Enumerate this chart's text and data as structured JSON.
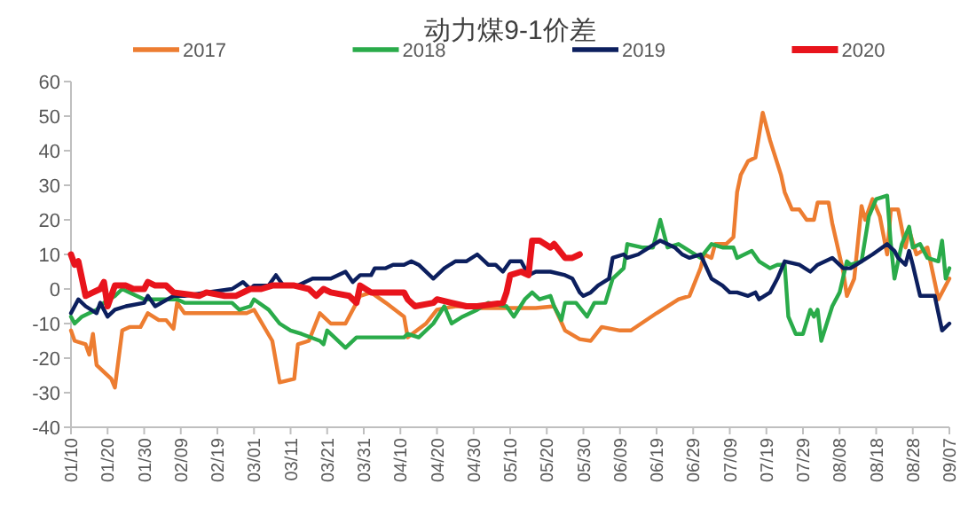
{
  "chart_data": {
    "type": "line",
    "title": "动力煤9-1价差",
    "legend": "top",
    "xlim": [
      "--01-10",
      "--09-07"
    ],
    "xticks": [
      {
        "value": "--01-10",
        "label": "01/10"
      },
      {
        "value": "--01-20",
        "label": "01/20"
      },
      {
        "value": "--01-30",
        "label": "01/30"
      },
      {
        "value": "--02-09",
        "label": "02/09"
      },
      {
        "value": "--02-19",
        "label": "02/19"
      },
      {
        "value": "--03-01",
        "label": "03/01"
      },
      {
        "value": "--03-11",
        "label": "03/11"
      },
      {
        "value": "--03-21",
        "label": "03/21"
      },
      {
        "value": "--03-31",
        "label": "03/31"
      },
      {
        "value": "--04-10",
        "label": "04/10"
      },
      {
        "value": "--04-20",
        "label": "04/20"
      },
      {
        "value": "--04-30",
        "label": "04/30"
      },
      {
        "value": "--05-10",
        "label": "05/10"
      },
      {
        "value": "--05-20",
        "label": "05/20"
      },
      {
        "value": "--05-30",
        "label": "05/30"
      },
      {
        "value": "--06-09",
        "label": "06/09"
      },
      {
        "value": "--06-19",
        "label": "06/19"
      },
      {
        "value": "--06-29",
        "label": "06/29"
      },
      {
        "value": "--07-09",
        "label": "07/09"
      },
      {
        "value": "--07-19",
        "label": "07/19"
      },
      {
        "value": "--07-29",
        "label": "07/29"
      },
      {
        "value": "--08-08",
        "label": "08/08"
      },
      {
        "value": "--08-18",
        "label": "08/18"
      },
      {
        "value": "--08-28",
        "label": "08/28"
      },
      {
        "value": "--09-07",
        "label": "09/07"
      }
    ],
    "ylim": [
      -40,
      60
    ],
    "yticks": [
      -40,
      -30,
      -20,
      -10,
      0,
      10,
      20,
      30,
      40,
      50,
      60
    ],
    "series": [
      {
        "name": "2017",
        "color": "#ed7d31",
        "x": [
          "--01-10",
          "--01-11",
          "--01-14",
          "--01-15",
          "--01-16",
          "--01-17",
          "--01-19",
          "--01-21",
          "--01-22",
          "--01-24",
          "--01-26",
          "--01-29",
          "--01-31",
          "--02-03",
          "--02-05",
          "--02-07",
          "--02-08",
          "--02-10",
          "--02-16",
          "--02-24",
          "--02-27",
          "--03-01",
          "--03-06",
          "--03-08",
          "--03-12",
          "--03-13",
          "--03-16",
          "--03-19",
          "--03-22",
          "--03-26",
          "--03-29",
          "--03-30",
          "--04-02",
          "--04-06",
          "--04-11",
          "--04-12",
          "--04-17",
          "--04-20",
          "--04-25",
          "--04-30",
          "--05-01",
          "--05-11",
          "--05-17",
          "--05-22",
          "--05-25",
          "--05-29",
          "--06-01",
          "--06-04",
          "--06-09",
          "--06-12",
          "--06-19",
          "--06-25",
          "--06-28",
          "--07-01",
          "--07-02",
          "--07-04",
          "--07-05",
          "--07-08",
          "--07-10",
          "--07-11",
          "--07-12",
          "--07-14",
          "--07-16",
          "--07-18",
          "--07-20",
          "--07-23",
          "--07-24",
          "--07-26",
          "--07-28",
          "--07-30",
          "--08-01",
          "--08-02",
          "--08-05",
          "--08-06",
          "--08-09",
          "--08-10",
          "--08-12",
          "--08-14",
          "--08-15",
          "--08-17",
          "--08-19",
          "--08-21",
          "--08-22",
          "--08-24",
          "--08-26",
          "--08-27",
          "--08-29",
          "--09-01",
          "--09-04",
          "--09-07"
        ],
        "values": [
          -12,
          -15,
          -16,
          -19,
          -13,
          -22,
          -24,
          -26,
          -28.5,
          -12,
          -11,
          -11,
          -7,
          -9,
          -9,
          -11.5,
          -4,
          -7,
          -7,
          -7,
          -7,
          -6,
          -15,
          -27,
          -26,
          -16,
          -15,
          -7,
          -10,
          -10,
          -4,
          -2,
          -1,
          -4,
          -8,
          -14,
          -10,
          -6,
          -5,
          -5,
          -5.5,
          -5.5,
          -5.5,
          -5,
          -12,
          -14.5,
          -15,
          -11,
          -12,
          -12,
          -7,
          -3,
          -2,
          6,
          10,
          9,
          13,
          13,
          15,
          28,
          33,
          37,
          38,
          51,
          43,
          33,
          28,
          23,
          23,
          20,
          20,
          25,
          25,
          19,
          5,
          -2,
          3,
          24,
          20,
          26,
          21,
          10,
          23,
          23,
          12,
          17,
          10,
          12,
          -3,
          3
        ]
      },
      {
        "name": "2018",
        "color": "#2aab4a",
        "x": [
          "--01-10",
          "--01-11",
          "--01-13",
          "--01-15",
          "--01-17",
          "--01-19",
          "--01-22",
          "--01-24",
          "--01-26",
          "--01-30",
          "--02-04",
          "--02-08",
          "--02-10",
          "--02-16",
          "--02-23",
          "--02-25",
          "--02-28",
          "--03-01",
          "--03-05",
          "--03-08",
          "--03-11",
          "--03-14",
          "--03-19",
          "--03-20",
          "--03-21",
          "--03-23",
          "--03-26",
          "--03-29",
          "--04-04",
          "--04-11",
          "--04-12",
          "--04-15",
          "--04-19",
          "--04-22",
          "--04-24",
          "--04-27",
          "--05-01",
          "--05-04",
          "--05-09",
          "--05-11",
          "--05-14",
          "--05-16",
          "--05-18",
          "--05-21",
          "--05-22",
          "--05-24",
          "--05-25",
          "--05-28",
          "--05-31",
          "--06-02",
          "--06-05",
          "--06-07",
          "--06-10",
          "--06-11",
          "--06-15",
          "--06-18",
          "--06-20",
          "--06-22",
          "--06-25",
          "--06-28",
          "--07-01",
          "--07-04",
          "--07-07",
          "--07-10",
          "--07-11",
          "--07-15",
          "--07-17",
          "--07-20",
          "--07-22",
          "--07-24",
          "--07-25",
          "--07-27",
          "--07-29",
          "--07-31",
          "--08-01",
          "--08-02",
          "--08-03",
          "--08-06",
          "--08-08",
          "--08-10",
          "--08-11",
          "--08-14",
          "--08-16",
          "--08-18",
          "--08-21",
          "--08-22",
          "--08-23",
          "--08-25",
          "--08-27",
          "--08-28",
          "--08-30",
          "--09-01",
          "--09-04",
          "--09-05",
          "--09-06",
          "--09-07"
        ],
        "values": [
          -8,
          -10,
          -8,
          -7,
          -6,
          -4,
          -2,
          0,
          -1,
          -3,
          -3,
          -3,
          -4,
          -4,
          -4,
          -6,
          -5,
          -3,
          -6,
          -10,
          -12,
          -13,
          -15,
          -16,
          -12,
          -14,
          -17,
          -14,
          -14,
          -14,
          -13,
          -14,
          -10,
          -5,
          -10,
          -8,
          -6,
          -4,
          -5,
          -8,
          -3,
          -1,
          -3,
          -2,
          -5,
          -9,
          -4,
          -4,
          -8,
          -4,
          -4,
          3,
          6,
          13,
          12,
          12,
          20,
          12,
          13,
          11,
          9,
          13,
          12,
          12,
          9,
          11,
          8,
          6,
          7,
          7,
          -8,
          -13,
          -13,
          -6,
          -8,
          -6,
          -15,
          -5,
          -1,
          8,
          7,
          8,
          21,
          26,
          27,
          13,
          3,
          13,
          18,
          12,
          13,
          9,
          8,
          14,
          3,
          6
        ]
      },
      {
        "name": "2019",
        "color": "#0c1f5e",
        "x": [
          "--01-10",
          "--01-12",
          "--01-14",
          "--01-17",
          "--01-18",
          "--01-20",
          "--01-22",
          "--01-25",
          "--01-30",
          "--01-31",
          "--02-02",
          "--02-07",
          "--02-10",
          "--02-16",
          "--02-23",
          "--02-26",
          "--02-28",
          "--03-01",
          "--03-05",
          "--03-07",
          "--03-09",
          "--03-13",
          "--03-17",
          "--03-22",
          "--03-26",
          "--03-28",
          "--03-30",
          "--04-02",
          "--04-03",
          "--04-06",
          "--04-08",
          "--04-11",
          "--04-13",
          "--04-15",
          "--04-19",
          "--04-22",
          "--04-25",
          "--04-28",
          "--05-01",
          "--05-04",
          "--05-06",
          "--05-08",
          "--05-10",
          "--05-13",
          "--05-15",
          "--05-17",
          "--05-21",
          "--05-25",
          "--05-27",
          "--05-29",
          "--05-30",
          "--06-01",
          "--06-03",
          "--06-06",
          "--06-07",
          "--06-10",
          "--06-11",
          "--06-14",
          "--06-17",
          "--06-20",
          "--06-24",
          "--06-26",
          "--06-28",
          "--07-01",
          "--07-04",
          "--07-07",
          "--07-09",
          "--07-11",
          "--07-14",
          "--07-16",
          "--07-17",
          "--07-20",
          "--07-22",
          "--07-24",
          "--07-28",
          "--07-31",
          "--08-02",
          "--08-06",
          "--08-09",
          "--08-11",
          "--08-14",
          "--08-17",
          "--08-21",
          "--08-23",
          "--08-24",
          "--08-26",
          "--08-27",
          "--08-28",
          "--08-30",
          "--09-03",
          "--09-05",
          "--09-07"
        ],
        "values": [
          -7,
          -3,
          -5,
          -7,
          -4,
          -8,
          -6,
          -5,
          -4,
          -2,
          -5,
          -2,
          -2,
          -1,
          0,
          2,
          0,
          1,
          1,
          4,
          1,
          1,
          3,
          3,
          5,
          2,
          4,
          4,
          6,
          6,
          7,
          7,
          8,
          7,
          3,
          6,
          8,
          8,
          10,
          7,
          7,
          5,
          8,
          8,
          4,
          5,
          5,
          4,
          3,
          -1,
          -2,
          -1,
          1,
          3,
          9,
          10,
          9,
          10,
          12,
          14,
          12,
          10,
          9,
          10,
          3,
          1,
          -1,
          -1,
          -2,
          -1,
          -3,
          -1,
          3,
          8,
          7,
          5,
          7,
          9,
          6,
          6,
          8,
          10,
          13,
          11,
          9,
          7,
          11,
          7,
          -2,
          -2,
          -12,
          -10
        ]
      },
      {
        "name": "2020",
        "color": "#e8141c",
        "x": [
          "--01-10",
          "--01-11",
          "--01-12",
          "--01-13",
          "--01-14",
          "--01-16",
          "--01-18",
          "--01-19",
          "--01-20",
          "--01-22",
          "--01-25",
          "--01-27",
          "--01-30",
          "--01-31",
          "--02-02",
          "--02-05",
          "--02-07",
          "--02-14",
          "--02-16",
          "--02-21",
          "--02-24",
          "--02-28",
          "--03-03",
          "--03-06",
          "--03-12",
          "--03-16",
          "--03-18",
          "--03-20",
          "--03-22",
          "--03-27",
          "--03-29",
          "--03-30",
          "--04-02",
          "--04-07",
          "--04-11",
          "--04-12",
          "--04-14",
          "--04-19",
          "--04-20",
          "--04-24",
          "--04-28",
          "--05-01",
          "--05-08",
          "--05-09",
          "--05-10",
          "--05-13",
          "--05-15",
          "--05-16",
          "--05-18",
          "--05-21",
          "--05-22",
          "--05-25",
          "--05-27",
          "--05-29"
        ],
        "values": [
          10,
          7,
          8,
          3,
          -2,
          -1,
          0,
          2,
          -5,
          1,
          1,
          0,
          0,
          2,
          1,
          1,
          -1,
          -2,
          -1,
          -2,
          -2,
          0,
          0,
          1,
          1,
          0,
          -2,
          0,
          -1,
          -2,
          -4,
          1,
          -1,
          -1,
          -1,
          -3,
          -5,
          -4,
          -3,
          -4,
          -5,
          -5,
          -4,
          -1,
          4,
          5,
          4,
          14,
          14,
          12,
          13,
          9,
          9,
          10
        ]
      }
    ]
  }
}
